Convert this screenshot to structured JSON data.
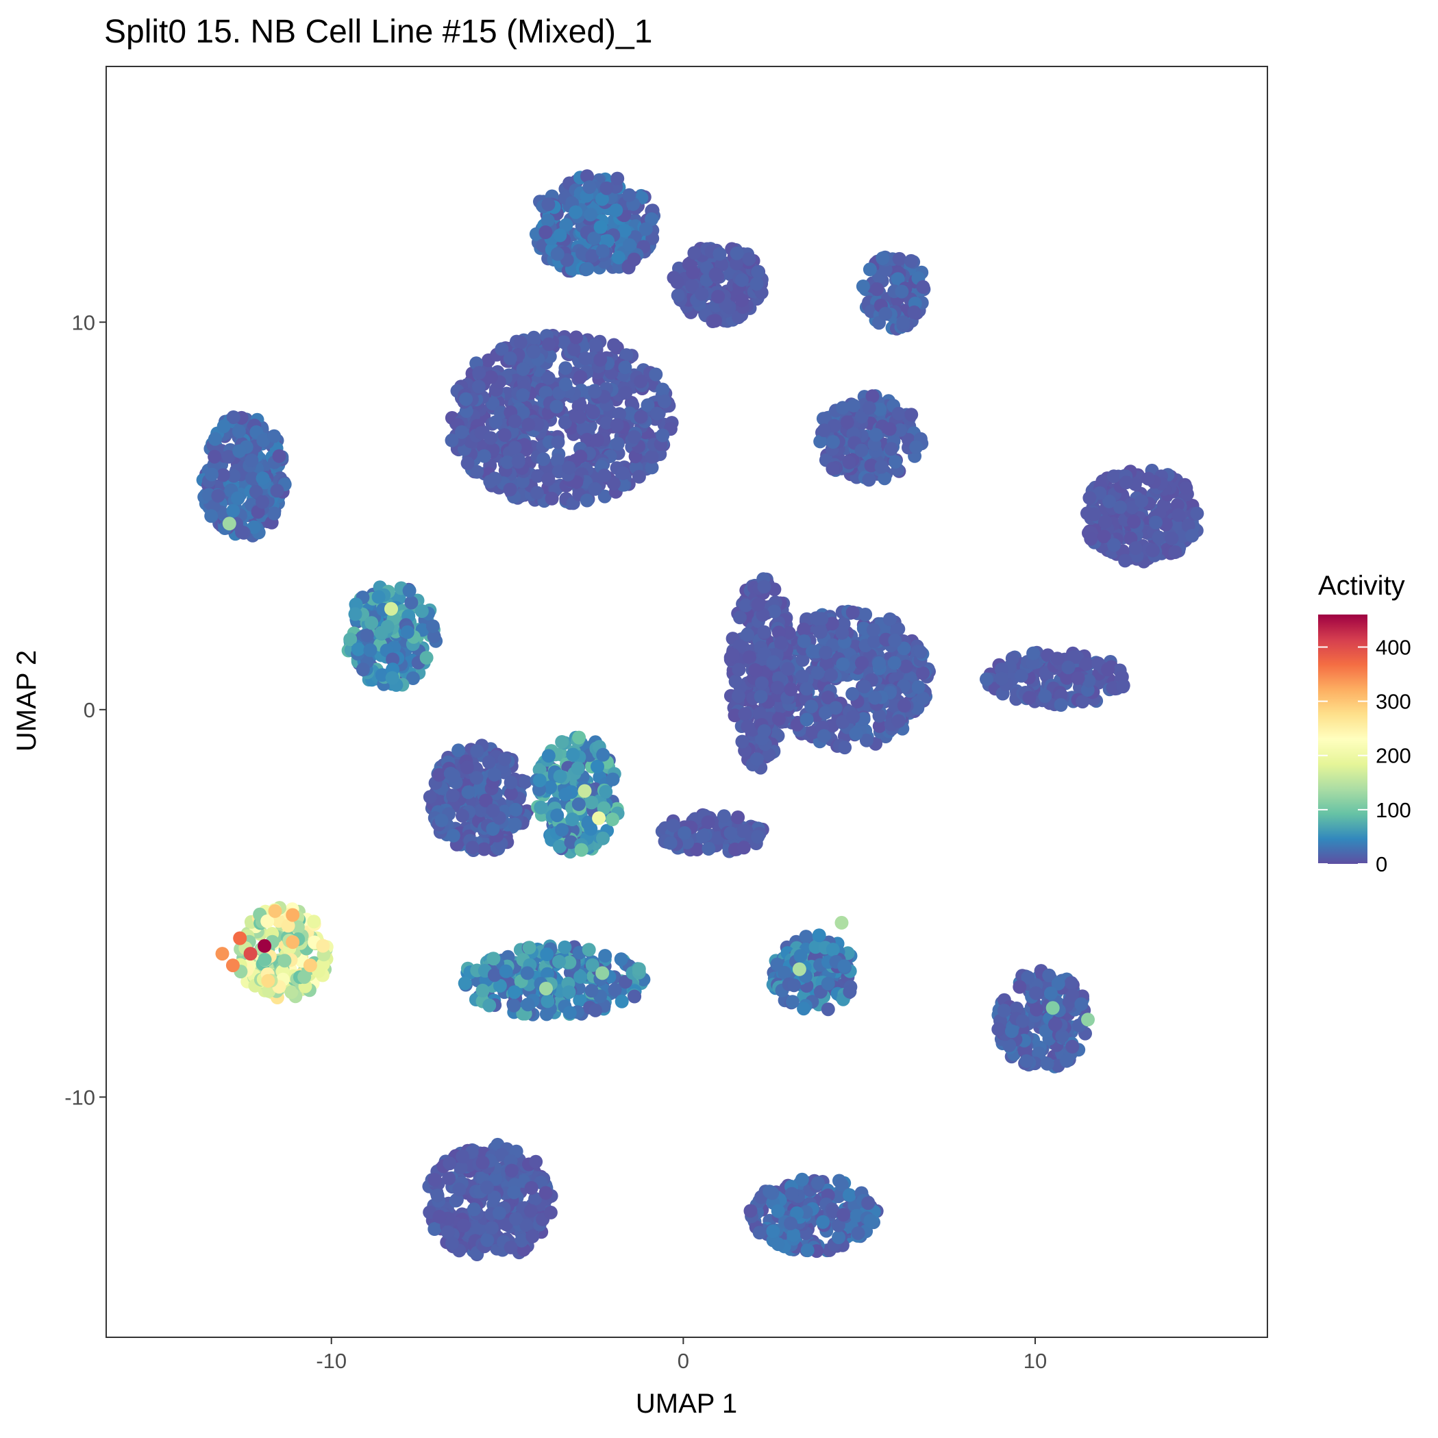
{
  "chart_data": {
    "type": "scatter",
    "title": "Split0 15. NB Cell Line #15 (Mixed)_1",
    "xlabel": "UMAP 1",
    "ylabel": "UMAP 2",
    "xlim": [
      -16.4,
      16.6
    ],
    "ylim": [
      -16.2,
      16.6
    ],
    "x_ticks": [
      -10,
      0,
      10
    ],
    "x_tick_labels": [
      "-10",
      "0",
      "10"
    ],
    "y_ticks": [
      -10,
      0,
      10
    ],
    "y_tick_labels": [
      "-10",
      "0",
      "10"
    ],
    "grid": false,
    "legend": {
      "title": "Activity",
      "position": "right",
      "type": "colorbar",
      "limits": [
        0,
        460
      ],
      "breaks": [
        0,
        100,
        200,
        300,
        400
      ],
      "break_labels": [
        "0",
        "100",
        "200",
        "300",
        "400"
      ],
      "palette": [
        "#5E4FA2",
        "#3288BD",
        "#66C2A5",
        "#ABDDA4",
        "#E6F598",
        "#FFFFBF",
        "#FEE08B",
        "#FDAE61",
        "#F46D43",
        "#D53E4F",
        "#9E0142"
      ]
    },
    "clusters": [
      {
        "cx": -3.5,
        "cy": 7.5,
        "rx": 3.2,
        "ry": 2.2,
        "activity_mean": 12
      },
      {
        "cx": -2.5,
        "cy": 12.5,
        "rx": 1.8,
        "ry": 1.3,
        "activity_mean": 25
      },
      {
        "cx": 1.0,
        "cy": 11.0,
        "rx": 1.3,
        "ry": 1.0,
        "activity_mean": 10
      },
      {
        "cx": 6.0,
        "cy": 10.8,
        "rx": 0.9,
        "ry": 1.0,
        "activity_mean": 18
      },
      {
        "cx": 5.3,
        "cy": 7.0,
        "rx": 1.5,
        "ry": 1.1,
        "activity_mean": 15
      },
      {
        "cx": 13.0,
        "cy": 5.0,
        "rx": 1.7,
        "ry": 1.2,
        "activity_mean": 10
      },
      {
        "cx": 10.6,
        "cy": 0.8,
        "rx": 2.0,
        "ry": 0.7,
        "activity_mean": 12
      },
      {
        "cx": 4.7,
        "cy": 0.8,
        "rx": 2.3,
        "ry": 1.8,
        "activity_mean": 15
      },
      {
        "cx": 2.2,
        "cy": 1.0,
        "rx": 0.9,
        "ry": 2.5,
        "activity_mean": 10
      },
      {
        "cx": -12.5,
        "cy": 6.0,
        "rx": 1.2,
        "ry": 1.6,
        "activity_mean": 22
      },
      {
        "cx": -8.3,
        "cy": 1.9,
        "rx": 1.3,
        "ry": 1.3,
        "activity_mean": 48
      },
      {
        "cx": -5.8,
        "cy": -2.3,
        "rx": 1.4,
        "ry": 1.4,
        "activity_mean": 15
      },
      {
        "cx": -3.0,
        "cy": -2.2,
        "rx": 1.2,
        "ry": 1.5,
        "activity_mean": 55
      },
      {
        "cx": 0.8,
        "cy": -3.2,
        "rx": 1.5,
        "ry": 0.5,
        "activity_mean": 12
      },
      {
        "cx": -11.4,
        "cy": -6.3,
        "rx": 1.3,
        "ry": 1.2,
        "activity_mean": 205
      },
      {
        "cx": -3.7,
        "cy": -7.0,
        "rx": 2.6,
        "ry": 0.9,
        "activity_mean": 45
      },
      {
        "cx": 3.7,
        "cy": -6.8,
        "rx": 1.2,
        "ry": 1.0,
        "activity_mean": 35
      },
      {
        "cx": 10.2,
        "cy": -8.0,
        "rx": 1.3,
        "ry": 1.3,
        "activity_mean": 18
      },
      {
        "cx": -5.5,
        "cy": -12.7,
        "rx": 1.8,
        "ry": 1.5,
        "activity_mean": 12
      },
      {
        "cx": 3.7,
        "cy": -13.0,
        "rx": 1.8,
        "ry": 1.0,
        "activity_mean": 22
      }
    ],
    "highlight_points": [
      {
        "x": -11.9,
        "y": -6.1,
        "activity": 460
      },
      {
        "x": -12.3,
        "y": -6.3,
        "activity": 400
      },
      {
        "x": -12.6,
        "y": -5.9,
        "activity": 370
      },
      {
        "x": -12.8,
        "y": -6.6,
        "activity": 350
      },
      {
        "x": -13.1,
        "y": -6.3,
        "activity": 340
      },
      {
        "x": -11.1,
        "y": -5.3,
        "activity": 320
      },
      {
        "x": -11.1,
        "y": -6.0,
        "activity": 310
      },
      {
        "x": -11.6,
        "y": -5.2,
        "activity": 300
      },
      {
        "x": -10.6,
        "y": -6.6,
        "activity": 290
      },
      {
        "x": -11.8,
        "y": -7.0,
        "activity": 280
      },
      {
        "x": -2.4,
        "y": -2.8,
        "activity": 200
      },
      {
        "x": -8.3,
        "y": 2.6,
        "activity": 170
      },
      {
        "x": -2.8,
        "y": -2.1,
        "activity": 160
      },
      {
        "x": -12.9,
        "y": 4.8,
        "activity": 130
      },
      {
        "x": 3.3,
        "y": -6.7,
        "activity": 140
      },
      {
        "x": -3.9,
        "y": -7.2,
        "activity": 130
      },
      {
        "x": 4.5,
        "y": -5.5,
        "activity": 140
      },
      {
        "x": 11.5,
        "y": -8.0,
        "activity": 120
      },
      {
        "x": -2.3,
        "y": -6.8,
        "activity": 120
      },
      {
        "x": 10.5,
        "y": -7.7,
        "activity": 110
      }
    ]
  }
}
